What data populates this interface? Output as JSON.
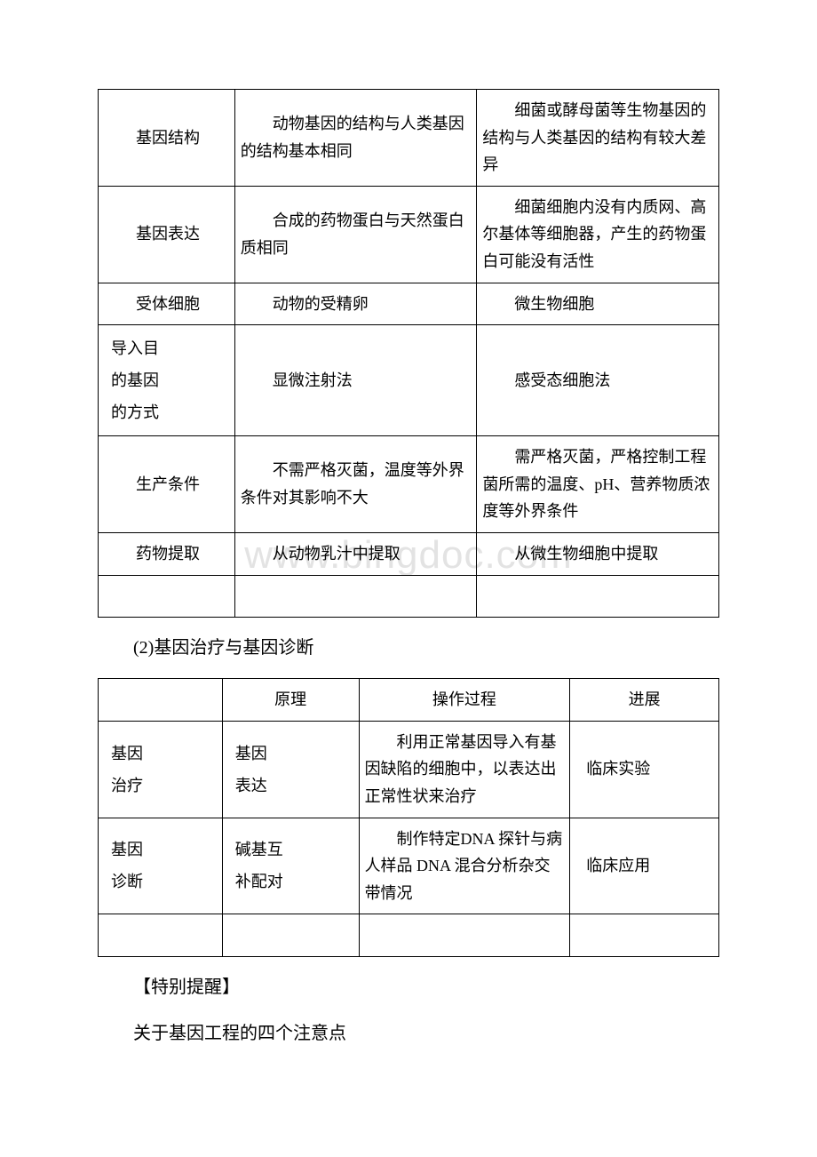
{
  "watermark": "www.bingdoc.com",
  "table1": {
    "border_color": "#000000",
    "font_size": 18,
    "text_color": "#000000",
    "background_color": "#ffffff",
    "column_widths_pct": [
      22,
      39,
      39
    ],
    "rows": [
      {
        "c1": "基因结构",
        "c2": "　　动物基因的结构与人类基因的结构基本相同",
        "c3": "　　细菌或酵母菌等生物基因的结构与人类基因的结构有较大差异"
      },
      {
        "c1": "基因表达",
        "c2": "　　合成的药物蛋白与天然蛋白质相同",
        "c3": "　　细菌细胞内没有内质网、高尔基体等细胞器，产生的药物蛋白可能没有活性"
      },
      {
        "c1": "受体细胞",
        "c2": "　　动物的受精卵",
        "c3": "　　微生物细胞"
      },
      {
        "c1_lines": [
          "导入目",
          "的基因",
          "的方式"
        ],
        "c2": "　　显微注射法",
        "c3": "　　感受态细胞法"
      },
      {
        "c1": "生产条件",
        "c2": "　　不需严格灭菌，温度等外界条件对其影响不大",
        "c3": "　　需严格灭菌，严格控制工程菌所需的温度、pH、营养物质浓度等外界条件"
      },
      {
        "c1": "药物提取",
        "c2": "　　从动物乳汁中提取",
        "c3": "　　从微生物细胞中提取"
      }
    ]
  },
  "section_title": "(2)基因治疗与基因诊断",
  "table2": {
    "border_color": "#000000",
    "font_size": 18,
    "text_color": "#000000",
    "background_color": "#ffffff",
    "column_widths_pct": [
      20,
      22,
      34,
      24
    ],
    "headers": [
      "",
      "原理",
      "操作过程",
      "进展"
    ],
    "rows": [
      {
        "c1_lines": [
          "基因",
          "治疗"
        ],
        "c2_lines": [
          "基因",
          "表达"
        ],
        "c3": "　　利用正常基因导入有基因缺陷的细胞中，以表达出正常性状来治疗",
        "c4": "临床实验"
      },
      {
        "c1_lines": [
          "基因",
          "诊断"
        ],
        "c2_lines": [
          "碱基互",
          "补配对"
        ],
        "c3": "　　制作特定DNA 探针与病人样品 DNA 混合分析杂交带情况",
        "c4": "临床应用"
      }
    ]
  },
  "reminder_label": "【特别提醒】",
  "reminder_text": "关于基因工程的四个注意点"
}
